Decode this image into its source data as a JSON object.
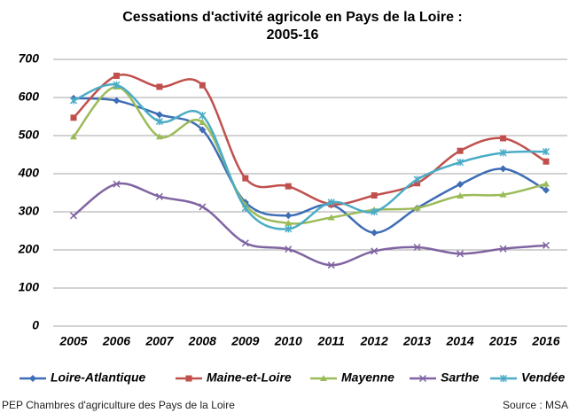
{
  "chart_data": {
    "type": "line",
    "title": [
      "Cessations d'activité agricole en Pays de la Loire :",
      "2005-16"
    ],
    "categories": [
      "2005",
      "2006",
      "2007",
      "2008",
      "2009",
      "2010",
      "2011",
      "2012",
      "2013",
      "2014",
      "2015",
      "2016"
    ],
    "series": [
      {
        "name": "Loire-Atlantique",
        "color": "#3e6db5",
        "marker": "diamond",
        "values": [
          598,
          592,
          555,
          515,
          325,
          290,
          318,
          245,
          310,
          372,
          413,
          357
        ]
      },
      {
        "name": "Maine-et-Loire",
        "color": "#c0504d",
        "marker": "square",
        "values": [
          547,
          657,
          628,
          632,
          388,
          367,
          320,
          343,
          375,
          460,
          493,
          432
        ]
      },
      {
        "name": "Mayenne",
        "color": "#9bbb59",
        "marker": "triangle",
        "values": [
          497,
          628,
          497,
          535,
          318,
          270,
          285,
          305,
          310,
          342,
          345,
          373
        ]
      },
      {
        "name": "Sarthe",
        "color": "#8064a2",
        "marker": "x",
        "values": [
          290,
          373,
          340,
          313,
          218,
          202,
          160,
          197,
          207,
          190,
          203,
          212
        ]
      },
      {
        "name": "Vendée",
        "color": "#4bacc6",
        "marker": "star",
        "values": [
          592,
          633,
          537,
          553,
          310,
          255,
          325,
          300,
          385,
          430,
          455,
          458
        ]
      }
    ],
    "ylim": [
      0,
      700
    ],
    "yticks": [
      0,
      100,
      200,
      300,
      400,
      500,
      600,
      700
    ],
    "grid": true,
    "legend": "bottom",
    "footer_left": "PEP Chambres d'agriculture des Pays de la Loire",
    "footer_right": "Source : MSA"
  }
}
